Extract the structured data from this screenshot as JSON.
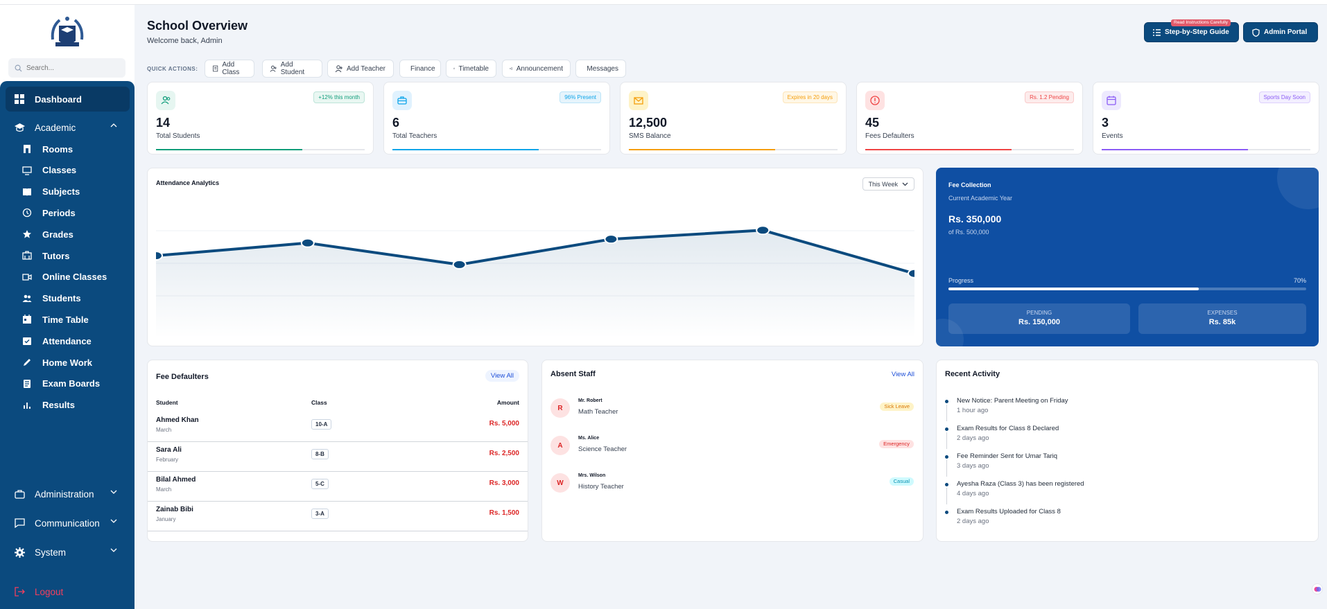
{
  "sidebar": {
    "search_placeholder": "Search...",
    "dashboard": "Dashboard",
    "academic": "Academic",
    "academic_items": [
      "Rooms",
      "Classes",
      "Subjects",
      "Periods",
      "Grades",
      "Tutors",
      "Online Classes",
      "Students",
      "Time Table",
      "Attendance",
      "Home Work",
      "Exam Boards",
      "Results"
    ],
    "administration": "Administration",
    "communication": "Communication",
    "system": "System",
    "logout": "Logout"
  },
  "header": {
    "title": "School Overview",
    "welcome": "Welcome back, Admin",
    "guide_button": "Step-by-Step Guide",
    "guide_badge": "Read Instructions Carefully",
    "portal_button": "Admin Portal"
  },
  "quick_actions": {
    "label": "QUICK ACTIONS:",
    "items": [
      "Add Class",
      "Add Student",
      "Add Teacher",
      "Finance",
      "Timetable",
      "Announcement",
      "Messages"
    ]
  },
  "stats": [
    {
      "value": "14",
      "label": "Total Students",
      "tag": "+12% this month",
      "progress": 0.7,
      "color": "#0f9d7a"
    },
    {
      "value": "6",
      "label": "Total Teachers",
      "tag": "96% Present",
      "progress": 0.7,
      "color": "#0ea5e9"
    },
    {
      "value": "12,500",
      "label": "SMS Balance",
      "tag": "Expires in 20 days",
      "progress": 0.7,
      "color": "#f59e0b"
    },
    {
      "value": "45",
      "label": "Fees Defaulters",
      "tag": "Rs. 1.2 Pending",
      "progress": 0.7,
      "color": "#ef4444"
    },
    {
      "value": "3",
      "label": "Events",
      "tag": "Sports Day Soon",
      "progress": 0.7,
      "color": "#8b5cf6"
    }
  ],
  "attendance": {
    "title": "Attendance Analytics",
    "period": "This Week"
  },
  "chart_data": {
    "type": "area",
    "y": [
      68,
      78,
      61,
      81,
      88,
      54
    ],
    "ylim": [
      0,
      100
    ],
    "title": "",
    "xlabel": "",
    "ylabel": ""
  },
  "fee_collection": {
    "title": "Fee Collection",
    "subtitle": "Current Academic Year",
    "amount": "Rs. 350,000",
    "of_total": "of Rs. 500,000",
    "progress_label": "Progress",
    "progress_value": "70%",
    "progress": 0.7,
    "pending_label": "PENDING",
    "pending_value": "Rs. 150,000",
    "expenses_label": "EXPENSES",
    "expenses_value": "Rs. 85k"
  },
  "fee_defaulters": {
    "title": "Fee Defaulters",
    "view_all": "View All",
    "columns": [
      "Student",
      "Class",
      "Amount"
    ],
    "rows": [
      {
        "name": "Ahmed Khan",
        "month": "March",
        "class": "10-A",
        "amount": "Rs. 5,000"
      },
      {
        "name": "Sara Ali",
        "month": "February",
        "class": "8-B",
        "amount": "Rs. 2,500"
      },
      {
        "name": "Bilal Ahmed",
        "month": "March",
        "class": "5-C",
        "amount": "Rs. 3,000"
      },
      {
        "name": "Zainab Bibi",
        "month": "January",
        "class": "3-A",
        "amount": "Rs. 1,500"
      }
    ]
  },
  "absent_staff": {
    "title": "Absent Staff",
    "view_all": "View All",
    "rows": [
      {
        "initial": "R",
        "name": "Mr. Robert",
        "role": "Math Teacher",
        "status": "Sick Leave",
        "color": "#d97706",
        "bg": "#fef3c7"
      },
      {
        "initial": "A",
        "name": "Ms. Alice",
        "role": "Science Teacher",
        "status": "Emergency",
        "color": "#dc2626",
        "bg": "#fee2e2"
      },
      {
        "initial": "W",
        "name": "Mrs. Wilson",
        "role": "History Teacher",
        "status": "Casual",
        "color": "#0891b2",
        "bg": "#cffafe"
      }
    ]
  },
  "recent_activity": {
    "title": "Recent Activity",
    "items": [
      {
        "text": "New Notice: Parent Meeting on Friday",
        "time": "1 hour ago"
      },
      {
        "text": "Exam Results for Class 8 Declared",
        "time": "2 days ago"
      },
      {
        "text": "Fee Reminder Sent for Umar Tariq",
        "time": "3 days ago"
      },
      {
        "text": "Ayesha Raza (Class 3) has been registered",
        "time": "4 days ago"
      },
      {
        "text": "Exam Results Uploaded for Class 8",
        "time": "2 days ago"
      }
    ]
  }
}
